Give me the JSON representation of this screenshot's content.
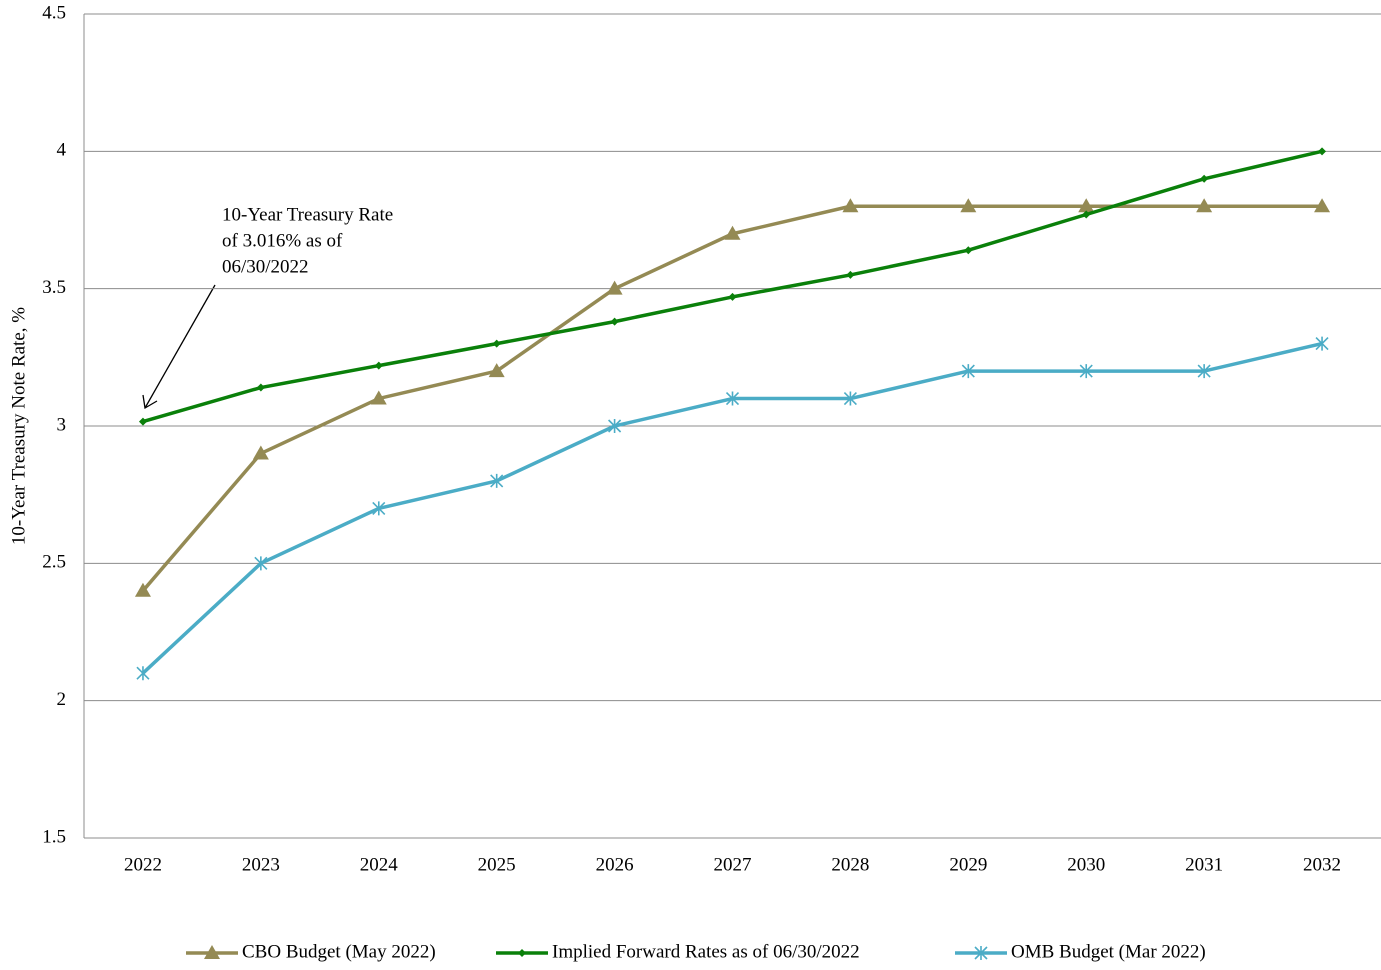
{
  "chart_data": {
    "type": "line",
    "ylabel": "10-Year Treasury Note Rate, %",
    "categories": [
      "2022",
      "2023",
      "2024",
      "2025",
      "2026",
      "2027",
      "2028",
      "2029",
      "2030",
      "2031",
      "2032"
    ],
    "series": [
      {
        "name": "CBO Budget (May 2022)",
        "color": "#948a54",
        "marker": "triangle",
        "values": [
          2.4,
          2.9,
          3.1,
          3.2,
          3.5,
          3.7,
          3.8,
          3.8,
          3.8,
          3.8,
          3.8
        ]
      },
      {
        "name": "Implied Forward Rates as of 06/30/2022",
        "color": "#0a800a",
        "marker": "diamond",
        "values": [
          3.016,
          3.14,
          3.22,
          3.3,
          3.38,
          3.47,
          3.55,
          3.64,
          3.77,
          3.9,
          4.0
        ]
      },
      {
        "name": "OMB Budget (Mar 2022)",
        "color": "#4bacc6",
        "marker": "asterisk",
        "values": [
          2.1,
          2.5,
          2.7,
          2.8,
          3.0,
          3.1,
          3.1,
          3.2,
          3.2,
          3.2,
          3.3
        ]
      }
    ],
    "ylim": [
      1.5,
      4.5
    ],
    "yticks": [
      1.5,
      2,
      2.5,
      3,
      3.5,
      4,
      4.5
    ],
    "grid": true,
    "annotation": [
      "10-Year Treasury Rate",
      "of 3.016% as of",
      "06/30/2022"
    ],
    "legend": "bottom"
  }
}
